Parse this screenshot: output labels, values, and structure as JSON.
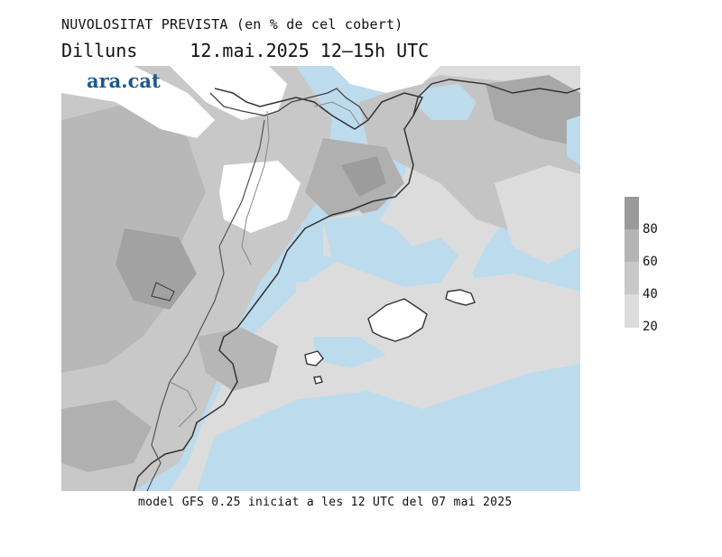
{
  "header": {
    "title": "NUVOLOSITAT PREVISTA (en % de cel cobert)",
    "day": "Dilluns",
    "date_time": "12.mai.2025 12–15h UTC"
  },
  "logo": {
    "text": "ara.cat",
    "color": "#1c5a88"
  },
  "footer": {
    "text": "model GFS 0.25 iniciat a les 12 UTC del 07 mai 2025"
  },
  "legend": {
    "levels": [
      {
        "label": "80",
        "color": "#9a9a9a"
      },
      {
        "label": "60",
        "color": "#b4b4b4"
      },
      {
        "label": "40",
        "color": "#c8c8c8"
      },
      {
        "label": "20",
        "color": "#dcdcdc"
      }
    ],
    "top_color": "#8a8a8a"
  },
  "colors": {
    "sea": "#bcdbed",
    "land_clear": "#ffffff",
    "coast": "#333333",
    "border": "#555555"
  }
}
